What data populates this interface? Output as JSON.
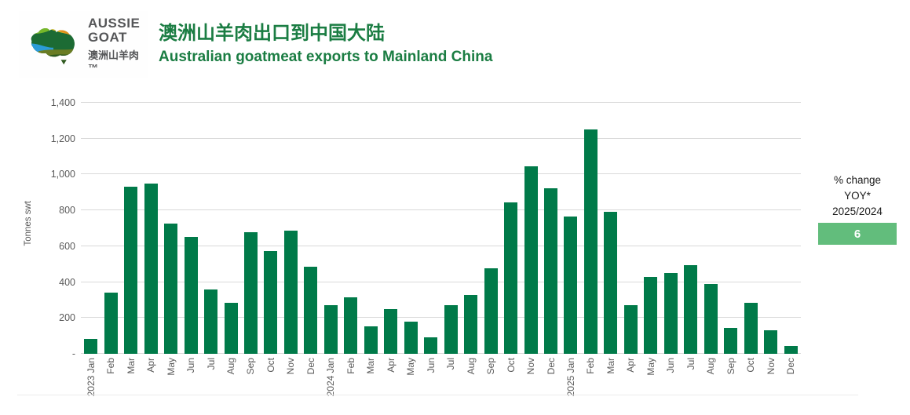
{
  "header": {
    "logo": {
      "line1": "AUSSIE",
      "line2": "GOAT",
      "line3": "澳洲山羊肉™"
    },
    "title_zh": "澳洲山羊肉出口到中国大陆",
    "title_en": "Australian goatmeat exports to Mainland China"
  },
  "chart_data": {
    "type": "bar",
    "title": "Australian goatmeat exports to Mainland China",
    "ylabel": "Tonnes swt",
    "xlabel": "",
    "ylim": [
      0,
      1400
    ],
    "ytick_step": 200,
    "ytick_labels": [
      "-",
      "200",
      "400",
      "600",
      "800",
      "1,000",
      "1,200",
      "1,400"
    ],
    "grid": true,
    "legend_position": "none",
    "bar_color": "#007a49",
    "gridline_color": "#d9d9d9",
    "categories": [
      "2023 Jan",
      "Feb",
      "Mar",
      "Apr",
      "May",
      "Jun",
      "Jul",
      "Aug",
      "Sep",
      "Oct",
      "Nov",
      "Dec",
      "2024 Jan",
      "Feb",
      "Mar",
      "Apr",
      "May",
      "Jun",
      "Jul",
      "Aug",
      "Sep",
      "Oct",
      "Nov",
      "Dec",
      "2025 Jan",
      "Feb",
      "Mar",
      "Apr",
      "May",
      "Jun",
      "Jul",
      "Aug",
      "Sep",
      "Oct",
      "Nov",
      "Dec"
    ],
    "values": [
      85,
      340,
      930,
      950,
      725,
      650,
      360,
      285,
      680,
      575,
      685,
      485,
      270,
      315,
      155,
      250,
      180,
      90,
      270,
      330,
      475,
      845,
      1045,
      925,
      765,
      1250,
      790,
      270,
      430,
      450,
      495,
      390,
      145,
      285,
      130,
      45
    ]
  },
  "yoy_panel": {
    "line1": "% change",
    "line2": "YOY*",
    "line3": "2025/2024",
    "value": "6",
    "box_color": "#62bd7c"
  }
}
